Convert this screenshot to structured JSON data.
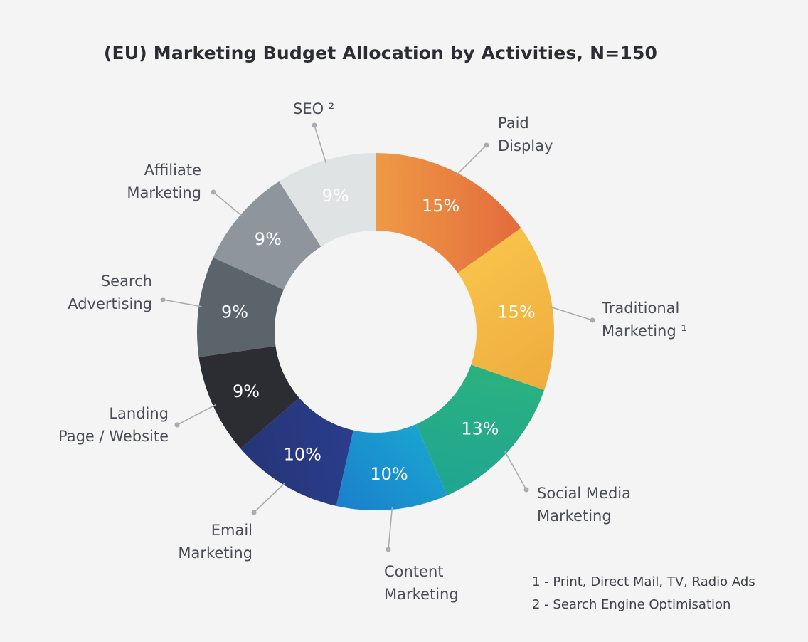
{
  "chart_data": {
    "type": "pie",
    "variant": "donut",
    "title": "(EU) Marketing Budget Allocation by Activities, N=150",
    "slices": [
      {
        "label": [
          "Paid",
          "Display"
        ],
        "value": 15,
        "display": "15%",
        "color_start": "#ee9a45",
        "color_end": "#e36b3c"
      },
      {
        "label": [
          "Traditional",
          "Marketing ¹"
        ],
        "value": 15,
        "display": "15%",
        "color_start": "#f7c24a",
        "color_end": "#efac3e"
      },
      {
        "label": [
          "Social Media",
          "Marketing"
        ],
        "value": 13,
        "display": "13%",
        "color_start": "#2bb17f",
        "color_end": "#1fa592"
      },
      {
        "label": [
          "Content",
          "Marketing"
        ],
        "value": 10,
        "display": "10%",
        "color_start": "#1aa4d0",
        "color_end": "#1b7fcc"
      },
      {
        "label": [
          "Email",
          "Marketing"
        ],
        "value": 10,
        "display": "10%",
        "color_start": "#2a3d8c",
        "color_end": "#253577"
      },
      {
        "label": [
          "Landing",
          "Page / Website"
        ],
        "value": 9,
        "display": "9%",
        "color_start": "#2b2d33",
        "color_end": "#2b2d33"
      },
      {
        "label": [
          "Search",
          "Advertising"
        ],
        "value": 9,
        "display": "9%",
        "color_start": "#5b636b",
        "color_end": "#5b636b"
      },
      {
        "label": [
          "Affiliate",
          "Marketing"
        ],
        "value": 9,
        "display": "9%",
        "color_start": "#8e959c",
        "color_end": "#8e959c"
      },
      {
        "label": [
          "SEO ²"
        ],
        "value": 9,
        "display": "9%",
        "color_start": "#dfe3e3",
        "color_end": "#dfe3e3",
        "pct_color": "#6b7077"
      }
    ],
    "legend": "labels-with-leader-lines"
  },
  "footnotes": {
    "line1": "1 - Print, Direct Mail, TV, Radio Ads",
    "line2": "2 - Search Engine Optimisation"
  }
}
